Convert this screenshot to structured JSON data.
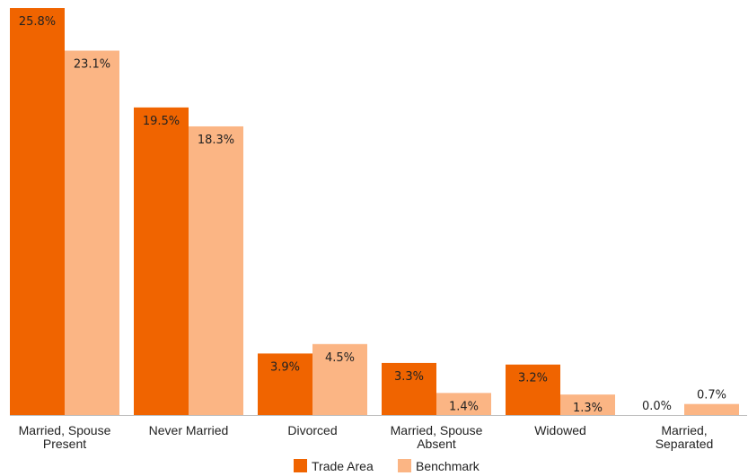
{
  "chart_data": {
    "type": "bar",
    "categories": [
      [
        "Married, Spouse",
        "Present"
      ],
      [
        "Never Married"
      ],
      [
        "Divorced"
      ],
      [
        "Married, Spouse",
        "Absent"
      ],
      [
        "Widowed"
      ],
      [
        "Married,",
        "Separated"
      ]
    ],
    "series": [
      {
        "name": "Trade Area",
        "color": "#f06400",
        "values": [
          25.8,
          19.5,
          3.9,
          3.3,
          3.2,
          0.0
        ],
        "labels": [
          "25.8%",
          "19.5%",
          "3.9%",
          "3.3%",
          "3.2%",
          "0.0%"
        ]
      },
      {
        "name": "Benchmark",
        "color": "#fbb584",
        "values": [
          23.1,
          18.3,
          4.5,
          1.4,
          1.3,
          0.7
        ],
        "labels": [
          "23.1%",
          "18.3%",
          "4.5%",
          "1.4%",
          "1.3%",
          "0.7%"
        ]
      }
    ],
    "ylim": [
      0,
      25.8
    ],
    "grid": false,
    "legend_position": "bottom"
  }
}
